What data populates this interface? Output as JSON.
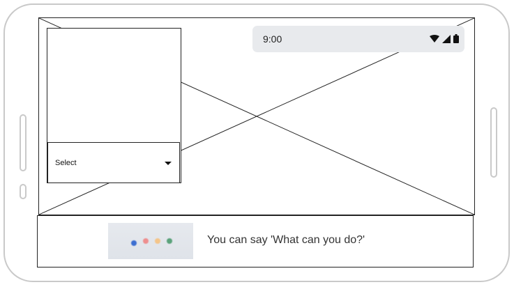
{
  "status_bar": {
    "time": "9:00",
    "icons": [
      "wifi-icon",
      "cell-signal-icon",
      "battery-icon"
    ]
  },
  "picker": {
    "select_label": "Select"
  },
  "assistant": {
    "hint_text": "You can say 'What can you do?'",
    "dots": [
      {
        "name": "blue-dot",
        "color": "#3d6fd1"
      },
      {
        "name": "red-dot",
        "color": "#ee8f8f"
      },
      {
        "name": "yellow-dot",
        "color": "#f4c58a"
      },
      {
        "name": "green-dot",
        "color": "#5aa27a"
      }
    ]
  },
  "colors": {
    "frame": "#c9c9c9",
    "status_bar_bg": "#e8eaed",
    "line": "#222222"
  }
}
